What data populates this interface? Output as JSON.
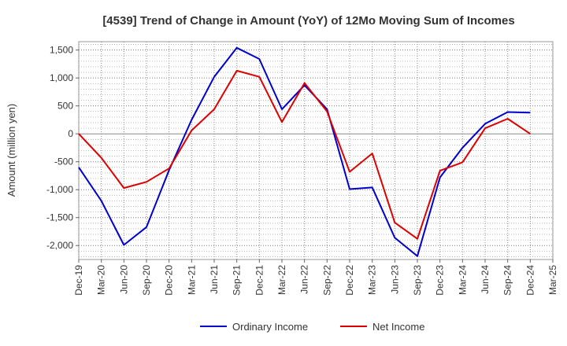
{
  "chart_data": {
    "type": "line",
    "title": "[4539]  Trend of Change in Amount (YoY) of 12Mo Moving Sum of Incomes",
    "ylabel": "Amount (million yen)",
    "xlabel": "",
    "ylim": [
      -2250,
      1650
    ],
    "yticks": [
      1500,
      1000,
      500,
      0,
      -500,
      -1000,
      -1500,
      -2000
    ],
    "ytick_labels": [
      "1,500",
      "1,000",
      "500",
      "0",
      "-500",
      "-1,000",
      "-1,500",
      "-2,000"
    ],
    "categories": [
      "Dec-19",
      "Mar-20",
      "Jun-20",
      "Sep-20",
      "Dec-20",
      "Mar-21",
      "Jun-21",
      "Sep-21",
      "Dec-21",
      "Mar-22",
      "Jun-22",
      "Sep-22",
      "Dec-22",
      "Mar-23",
      "Jun-23",
      "Sep-23",
      "Dec-23",
      "Mar-24",
      "Jun-24",
      "Sep-24",
      "Dec-24",
      "Mar-25"
    ],
    "grid": true,
    "legend_position": "bottom",
    "series": [
      {
        "name": "Ordinary Income",
        "color": "#0000cc",
        "values": [
          -600,
          -1200,
          -1990,
          -1670,
          -650,
          250,
          1020,
          1540,
          1340,
          440,
          870,
          440,
          -990,
          -960,
          -1860,
          -2190,
          -780,
          -250,
          180,
          390,
          380,
          null
        ]
      },
      {
        "name": "Net Income",
        "color": "#dd0000",
        "values": [
          0,
          -430,
          -970,
          -860,
          -620,
          60,
          440,
          1130,
          1020,
          210,
          910,
          400,
          -680,
          -350,
          -1590,
          -1880,
          -660,
          -510,
          100,
          270,
          0,
          null
        ]
      }
    ]
  }
}
